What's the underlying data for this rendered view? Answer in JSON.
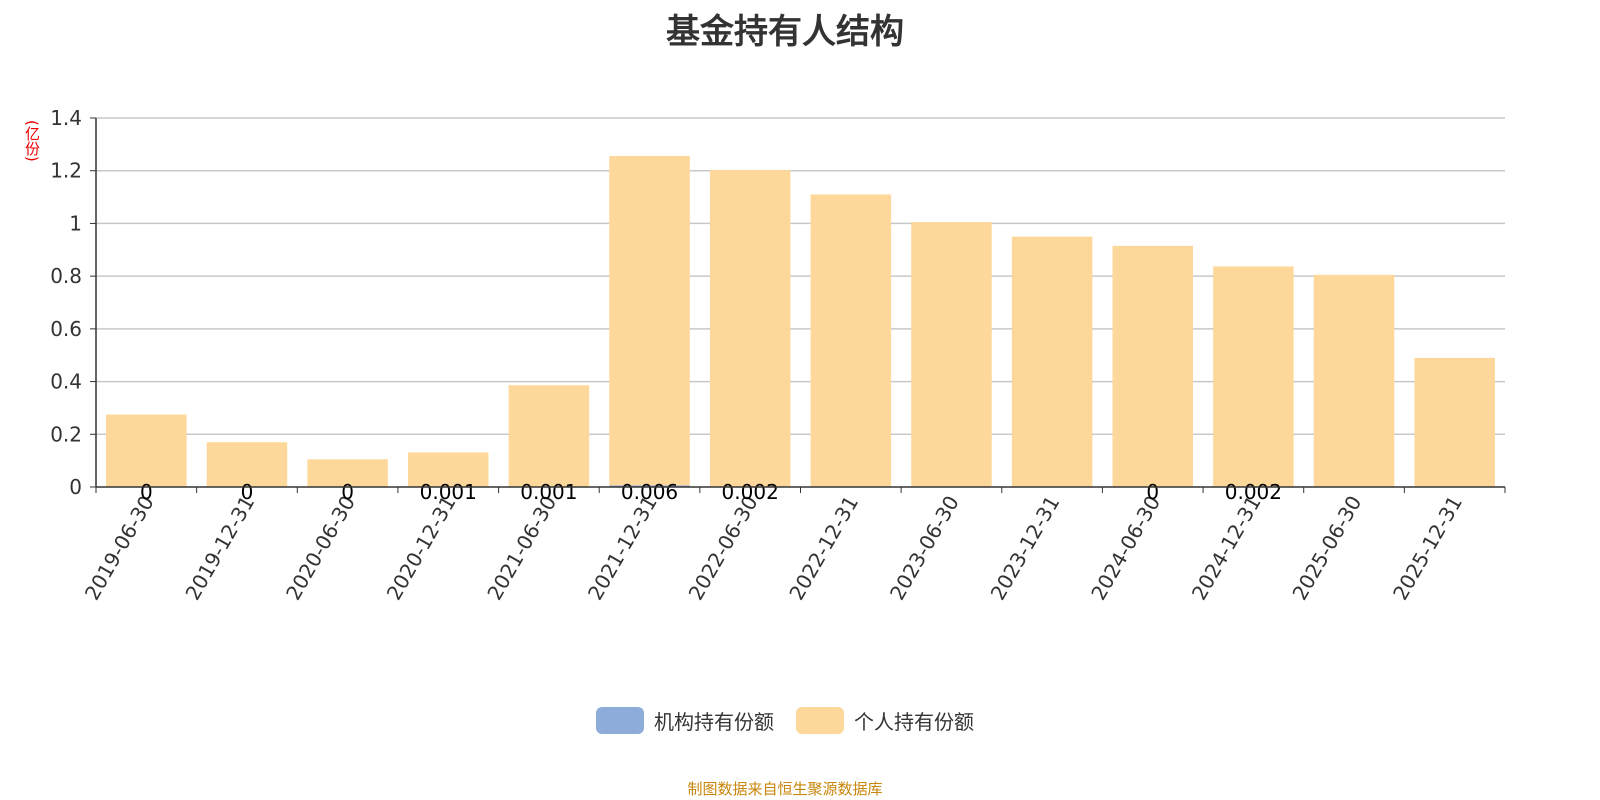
{
  "title": "基金持有人结构",
  "unit": "(亿份)",
  "source": "制图数据来自恒生聚源数据库",
  "chart_data": {
    "type": "bar",
    "stacked": true,
    "title": "基金持有人结构",
    "ylabel": "(亿份)",
    "ylim": [
      0,
      1.4
    ],
    "yticks": [
      0,
      0.2,
      0.4,
      0.6,
      0.8,
      1,
      1.2,
      1.4
    ],
    "categories": [
      "2019-06-30",
      "2019-12-31",
      "2020-06-30",
      "2020-12-31",
      "2021-06-30",
      "2021-12-31",
      "2022-06-30",
      "2022-12-31",
      "2023-06-30",
      "2023-12-31",
      "2024-06-30",
      "2024-12-31",
      "2025-06-30",
      "2025-12-31"
    ],
    "series": [
      {
        "name": "机构持有份额",
        "color": "#8eacd9",
        "values": [
          0,
          0,
          0,
          0.001,
          0.001,
          0.006,
          0.002,
          null,
          null,
          null,
          0,
          0.002,
          null,
          null
        ]
      },
      {
        "name": "个人持有份额",
        "color": "#fdd89a",
        "values": [
          0.275,
          0.17,
          0.105,
          0.13,
          0.385,
          1.25,
          1.2,
          1.11,
          1.005,
          0.95,
          0.915,
          0.835,
          0.805,
          0.49
        ]
      }
    ],
    "legend": "bottom-center"
  }
}
